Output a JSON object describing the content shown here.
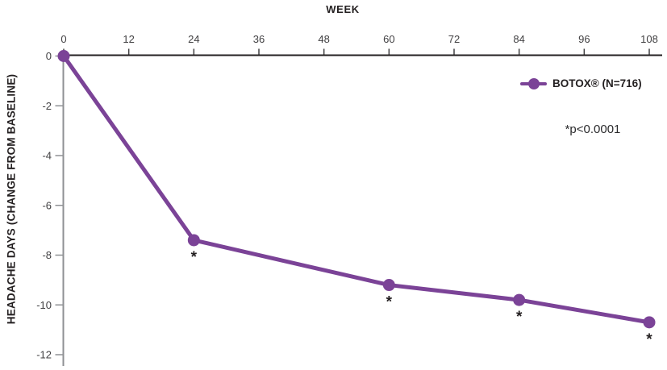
{
  "chart_data": {
    "type": "line",
    "xlabel": "WEEK",
    "ylabel": "HEADACHE DAYS (CHANGE FROM BASELINE)",
    "xlim": [
      0,
      108
    ],
    "ylim": [
      -12,
      0
    ],
    "x_ticks": [
      0,
      12,
      24,
      36,
      48,
      60,
      72,
      84,
      96,
      108
    ],
    "y_ticks": [
      0,
      -2,
      -4,
      -6,
      -8,
      -10,
      -12
    ],
    "grid": false,
    "legend_position": "top-right",
    "series": [
      {
        "name": "BOTOX® (N=716)",
        "color": "#7B4397",
        "points": [
          {
            "x": 0,
            "y": 0,
            "significant": false
          },
          {
            "x": 24,
            "y": -7.4,
            "significant": true
          },
          {
            "x": 60,
            "y": -9.2,
            "significant": true
          },
          {
            "x": 84,
            "y": -9.8,
            "significant": true
          },
          {
            "x": 108,
            "y": -10.7,
            "significant": true
          }
        ]
      }
    ],
    "significance_marker": "*",
    "annotation": "*p<0.0001"
  },
  "axes": {
    "x_title": "WEEK",
    "y_title": "HEADACHE DAYS (CHANGE FROM BASELINE)"
  },
  "legend": {
    "label": "BOTOX® (N=716)"
  },
  "annotation": {
    "p_value": "*p<0.0001"
  },
  "colors": {
    "series": "#7B4397",
    "x_axis_line": "#231F20",
    "y_axis_line": "#8F9194",
    "tick_label": "#414042",
    "text": "#231F20"
  }
}
